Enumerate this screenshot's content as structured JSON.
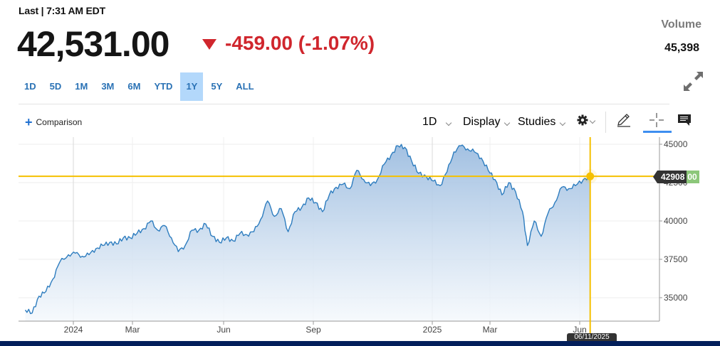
{
  "quote": {
    "last_label": "Last | 7:31 AM EDT",
    "price": "42,531.00",
    "change": "-459.00 (-1.07%)",
    "direction": "down",
    "change_color": "#d0262d",
    "volume_label": "Volume",
    "volume_value": "45,398"
  },
  "ranges": {
    "items": [
      {
        "label": "1D"
      },
      {
        "label": "5D"
      },
      {
        "label": "1M"
      },
      {
        "label": "3M"
      },
      {
        "label": "6M"
      },
      {
        "label": "YTD"
      },
      {
        "label": "1Y"
      },
      {
        "label": "5Y"
      },
      {
        "label": "ALL"
      }
    ],
    "active": "1Y",
    "active_color": "#b3d8fb"
  },
  "toolbar": {
    "comparison_label": "Comparison",
    "interval_label": "1D",
    "display_label": "Display",
    "studies_label": "Studies",
    "settings_icon": "gear-icon",
    "draw_icon": "pencil-icon",
    "crosshair_icon": "crosshair-icon",
    "comment_icon": "comment-icon"
  },
  "crosshair": {
    "price_label": "42908",
    "price_label_suffix": "00",
    "date_label": "06/11/2025",
    "color": "#f5c000"
  },
  "chart_data": {
    "type": "area",
    "title": "",
    "xlabel": "",
    "ylabel": "",
    "x_ticks": [
      "2024",
      "Mar",
      "Jun",
      "Sep",
      "2025",
      "Mar",
      "Jun"
    ],
    "y_ticks": [
      35000,
      37500,
      40000,
      42500,
      45000
    ],
    "ylim": [
      33500,
      45500
    ],
    "grid": true,
    "y_axis_position": "right",
    "line_color": "#2e7dbf",
    "fill_color_top": "#9dbde0",
    "fill_color_bottom": "#f4f8fc",
    "reference_line": 42908,
    "series": [
      {
        "name": "Price",
        "x": [
          "2023-11-13",
          "2023-11-20",
          "2023-11-27",
          "2023-12-04",
          "2023-12-11",
          "2023-12-18",
          "2023-12-27",
          "2024-01-03",
          "2024-01-10",
          "2024-01-17",
          "2024-01-24",
          "2024-01-31",
          "2024-02-07",
          "2024-02-14",
          "2024-02-21",
          "2024-02-28",
          "2024-03-06",
          "2024-03-13",
          "2024-03-20",
          "2024-03-27",
          "2024-04-03",
          "2024-04-10",
          "2024-04-17",
          "2024-04-24",
          "2024-05-01",
          "2024-05-08",
          "2024-05-15",
          "2024-05-22",
          "2024-05-29",
          "2024-06-05",
          "2024-06-12",
          "2024-06-19",
          "2024-06-26",
          "2024-07-03",
          "2024-07-10",
          "2024-07-17",
          "2024-07-24",
          "2024-07-31",
          "2024-08-07",
          "2024-08-14",
          "2024-08-21",
          "2024-08-28",
          "2024-09-04",
          "2024-09-11",
          "2024-09-18",
          "2024-09-25",
          "2024-10-02",
          "2024-10-09",
          "2024-10-16",
          "2024-10-23",
          "2024-10-30",
          "2024-11-06",
          "2024-11-13",
          "2024-11-20",
          "2024-11-27",
          "2024-12-04",
          "2024-12-11",
          "2024-12-18",
          "2024-12-26",
          "2025-01-02",
          "2025-01-09",
          "2025-01-16",
          "2025-01-23",
          "2025-01-30",
          "2025-02-06",
          "2025-02-13",
          "2025-02-20",
          "2025-02-27",
          "2025-03-06",
          "2025-03-13",
          "2025-03-20",
          "2025-03-27",
          "2025-04-03",
          "2025-04-08",
          "2025-04-15",
          "2025-04-22",
          "2025-04-29",
          "2025-05-06",
          "2025-05-13",
          "2025-05-20",
          "2025-05-27",
          "2025-06-04",
          "2025-06-11"
        ],
        "values": [
          34200,
          34000,
          35100,
          35400,
          36200,
          37300,
          37800,
          37900,
          37700,
          37800,
          38200,
          38400,
          38600,
          38500,
          38900,
          38900,
          39200,
          39500,
          40000,
          39400,
          39700,
          38900,
          38000,
          38400,
          39400,
          39400,
          39800,
          39000,
          38600,
          38900,
          38700,
          39200,
          39100,
          39300,
          40100,
          41300,
          40300,
          40800,
          39300,
          40600,
          40900,
          41500,
          41200,
          40600,
          41700,
          42200,
          42400,
          42100,
          43300,
          42700,
          42300,
          42700,
          43700,
          44300,
          44900,
          44800,
          43900,
          43100,
          42900,
          42600,
          42300,
          43200,
          44500,
          44900,
          44700,
          44500,
          44100,
          43300,
          42700,
          41700,
          42500,
          41900,
          40600,
          38400,
          40000,
          39000,
          40500,
          41200,
          42200,
          42100,
          42300,
          42700,
          42908
        ]
      }
    ]
  }
}
